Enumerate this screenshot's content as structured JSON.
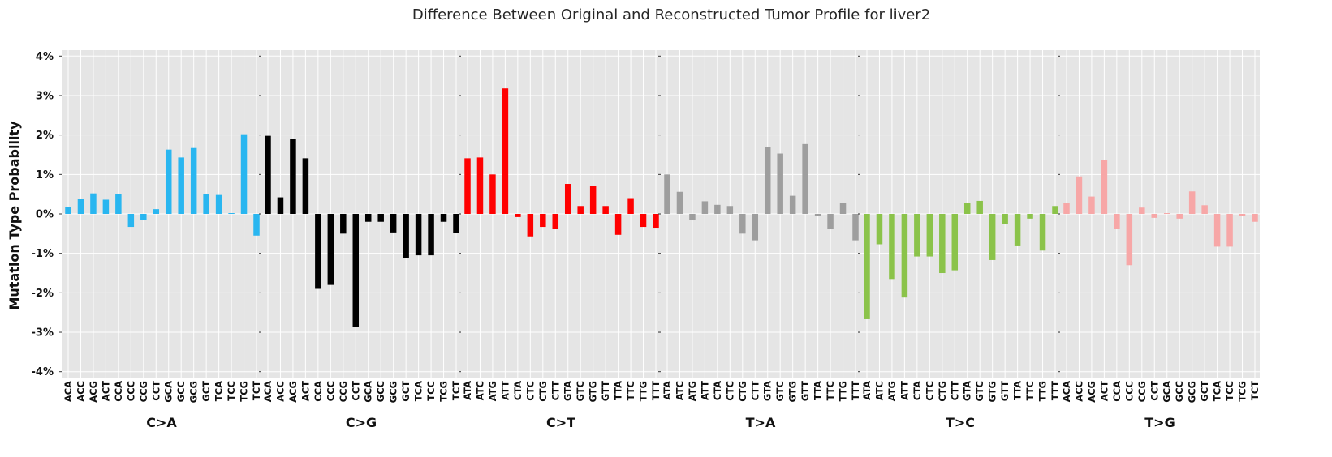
{
  "chart_data": {
    "type": "bar",
    "title": "Difference Between Original and Reconstructed Tumor Profile for liver2",
    "ylabel": "Mutation Type Probability",
    "xlabel": "",
    "ylim": [
      -4.15,
      4.15
    ],
    "yticks": [
      -4,
      -3,
      -2,
      -1,
      0,
      1,
      2,
      3,
      4
    ],
    "ytick_suffix": "%",
    "grid": true,
    "background": "#e5e5e5",
    "groups": [
      {
        "name": "C>A",
        "color": "#29b6f0",
        "categories": [
          "ACA",
          "ACC",
          "ACG",
          "ACT",
          "CCA",
          "CCC",
          "CCG",
          "CCT",
          "GCA",
          "GCC",
          "GCG",
          "GCT",
          "TCA",
          "TCC",
          "TCG",
          "TCT"
        ],
        "values": [
          0.18,
          0.38,
          0.52,
          0.36,
          0.5,
          -0.33,
          -0.15,
          0.12,
          1.63,
          1.43,
          1.67,
          0.5,
          0.48,
          0.02,
          2.02,
          -0.55
        ]
      },
      {
        "name": "C>G",
        "color": "#000000",
        "categories": [
          "ACA",
          "ACC",
          "ACG",
          "ACT",
          "CCA",
          "CCC",
          "CCG",
          "CCT",
          "GCA",
          "GCC",
          "GCG",
          "GCT",
          "TCA",
          "TCC",
          "TCG",
          "TCT"
        ],
        "values": [
          1.98,
          0.42,
          1.9,
          1.41,
          -1.9,
          -1.8,
          -0.5,
          -2.87,
          -0.2,
          -0.2,
          -0.47,
          -1.13,
          -1.05,
          -1.05,
          -0.2,
          -0.48
        ]
      },
      {
        "name": "C>T",
        "color": "#ff0000",
        "categories": [
          "ATA",
          "ATC",
          "ATG",
          "ATT",
          "CTA",
          "CTC",
          "CTG",
          "CTT",
          "GTA",
          "GTC",
          "GTG",
          "GTT",
          "TTA",
          "TTC",
          "TTG",
          "TTT"
        ],
        "values": [
          1.41,
          1.43,
          1.0,
          3.18,
          -0.08,
          -0.57,
          -0.33,
          -0.37,
          0.76,
          0.2,
          0.71,
          0.2,
          -0.53,
          0.4,
          -0.33,
          -0.35
        ]
      },
      {
        "name": "T>A",
        "color": "#9e9e9e",
        "categories": [
          "ATA",
          "ATC",
          "ATG",
          "ATT",
          "CTA",
          "CTC",
          "CTG",
          "CTT",
          "GTA",
          "GTC",
          "GTG",
          "GTT",
          "TTA",
          "TTC",
          "TTG",
          "TTT"
        ],
        "values": [
          1.0,
          0.56,
          -0.15,
          0.32,
          0.23,
          0.2,
          -0.5,
          -0.67,
          1.7,
          1.53,
          0.46,
          1.77,
          -0.05,
          -0.37,
          0.28,
          -0.67
        ]
      },
      {
        "name": "T>C",
        "color": "#8bc34a",
        "categories": [
          "ATA",
          "ATC",
          "ATG",
          "ATT",
          "CTA",
          "CTC",
          "CTG",
          "CTT",
          "GTA",
          "GTC",
          "GTG",
          "GTT",
          "TTA",
          "TTC",
          "TTG",
          "TTT"
        ],
        "values": [
          -2.67,
          -0.77,
          -1.65,
          -2.12,
          -1.08,
          -1.08,
          -1.5,
          -1.43,
          0.28,
          0.33,
          -1.17,
          -0.25,
          -0.8,
          -0.12,
          -0.93,
          0.2
        ]
      },
      {
        "name": "T>G",
        "color": "#f7a7a7",
        "categories": [
          "ACA",
          "ACC",
          "ACG",
          "ACT",
          "CCA",
          "CCC",
          "CCG",
          "CCT",
          "GCA",
          "GCC",
          "GCG",
          "GCT",
          "TCA",
          "TCC",
          "TCG",
          "TCT"
        ],
        "values": [
          0.28,
          0.95,
          0.44,
          1.37,
          -0.37,
          -1.3,
          0.16,
          -0.1,
          0.02,
          -0.12,
          0.57,
          0.22,
          -0.83,
          -0.83,
          -0.05,
          -0.2
        ]
      }
    ]
  }
}
